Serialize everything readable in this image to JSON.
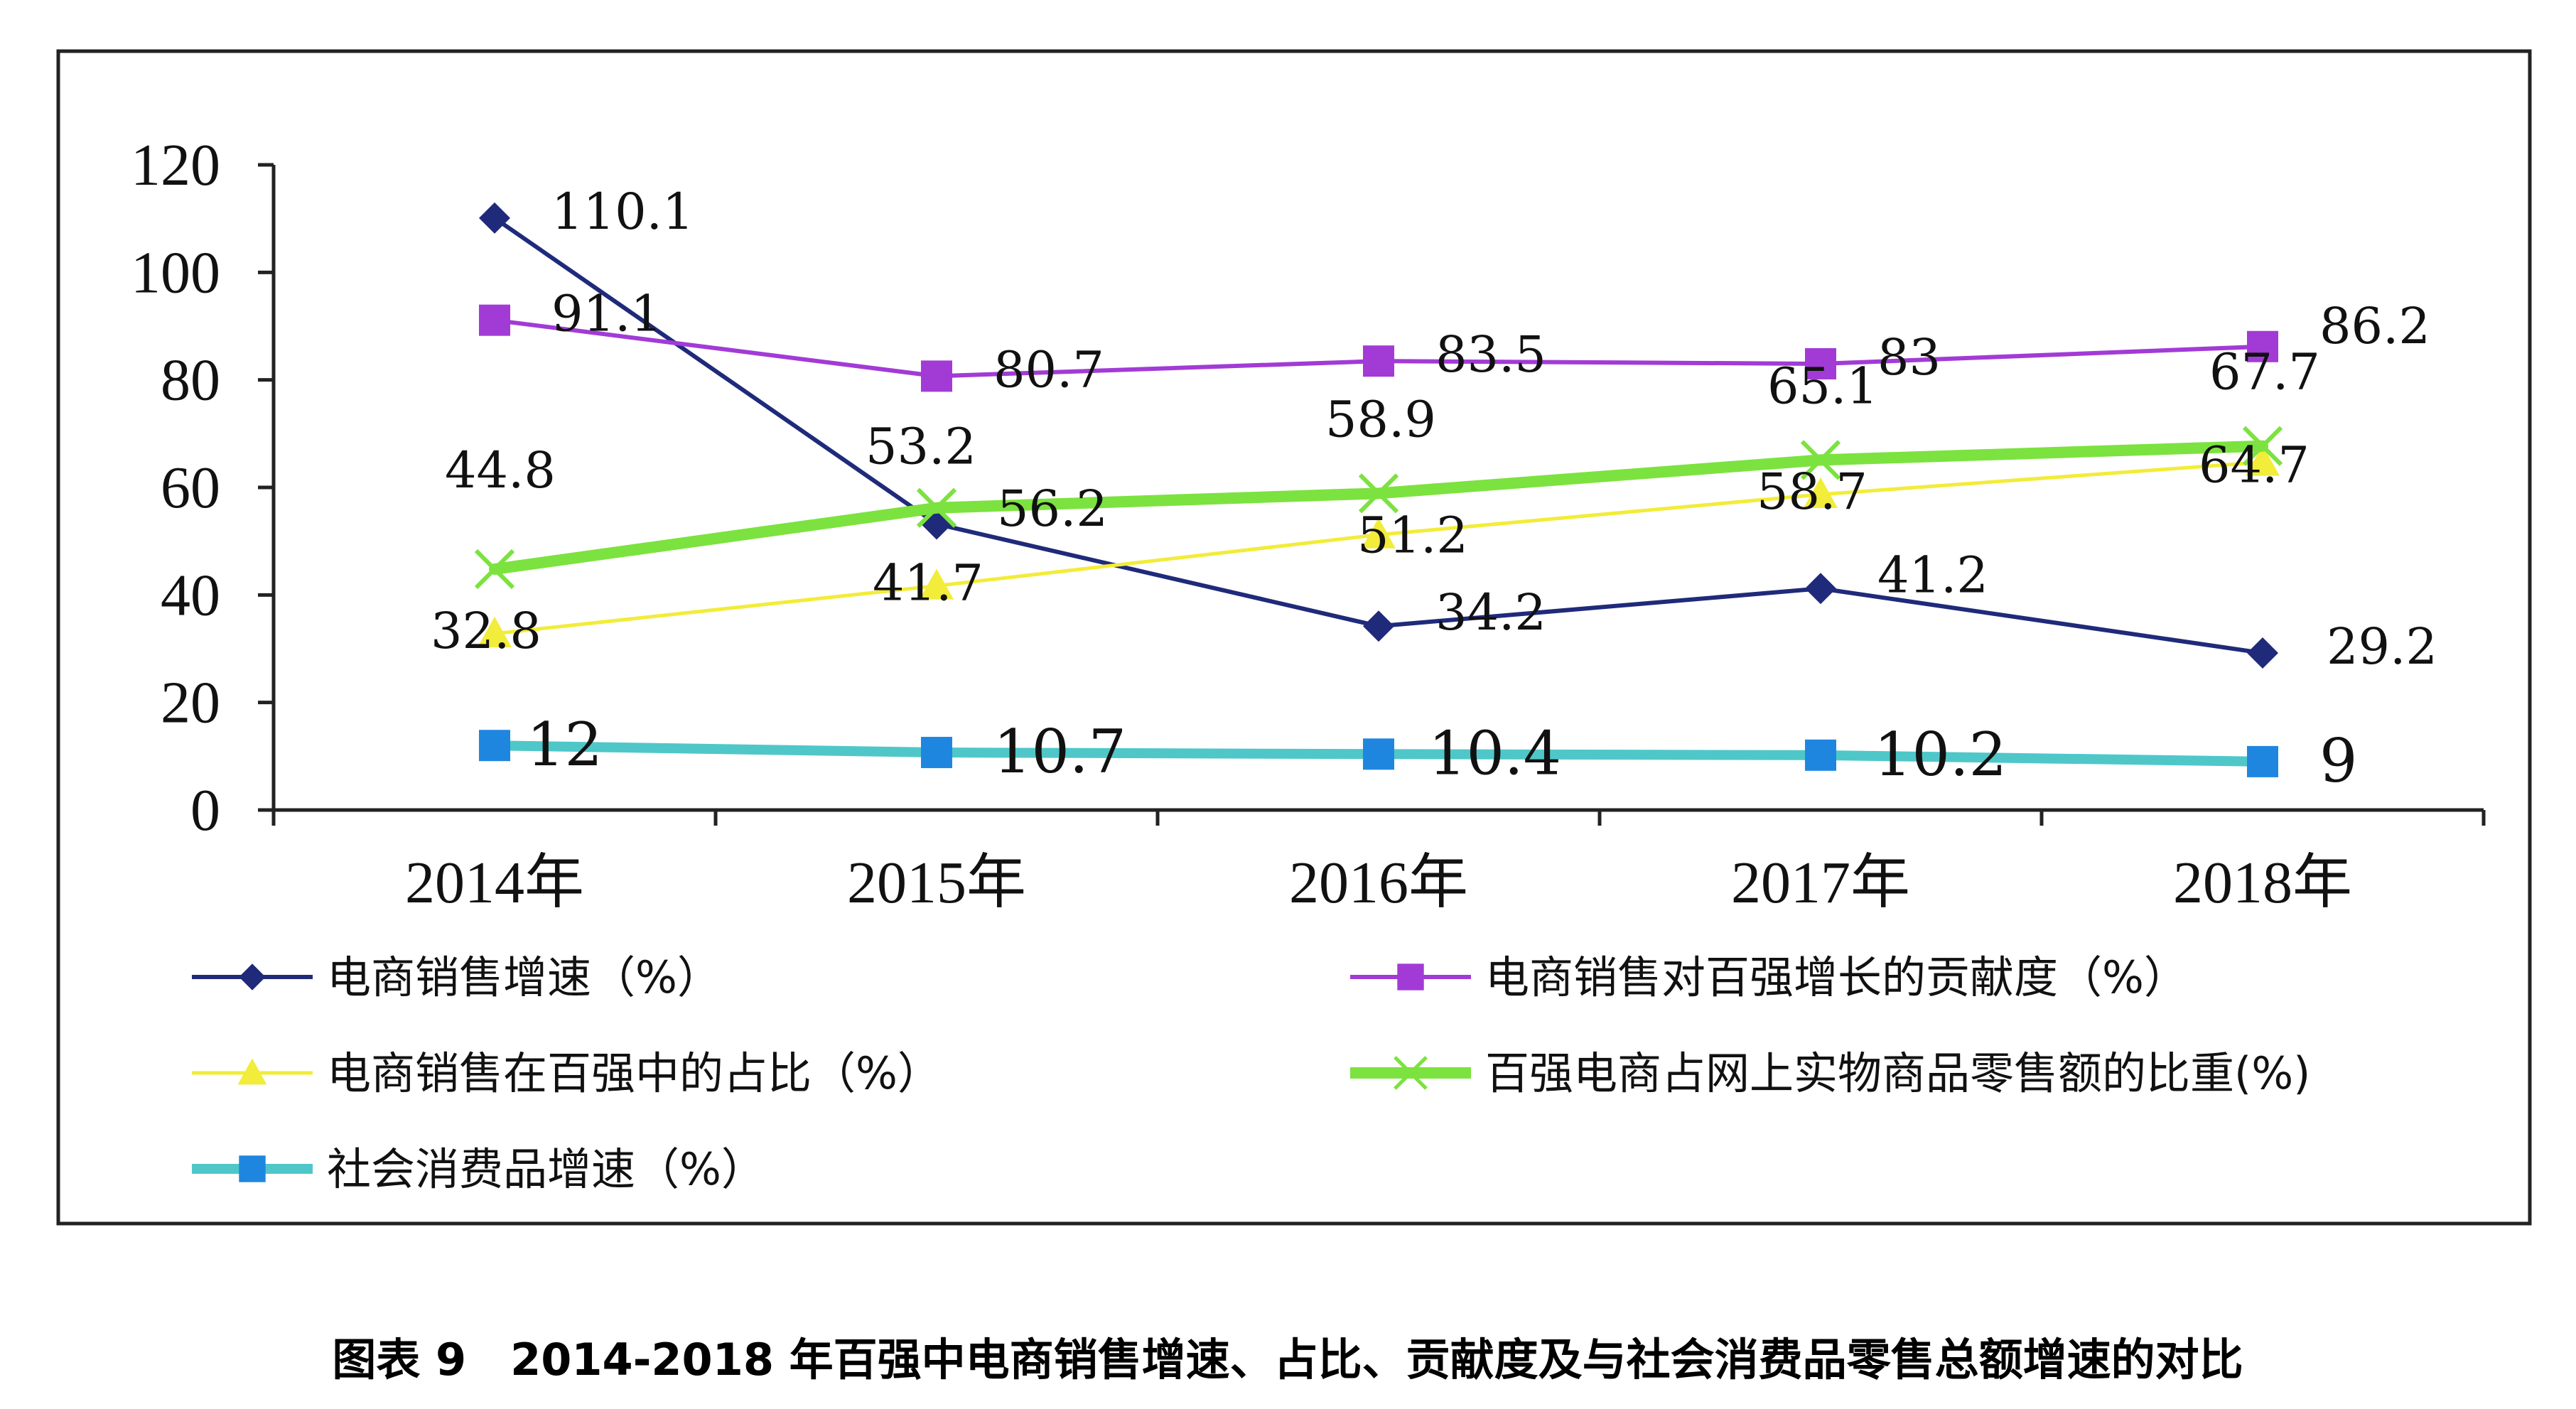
{
  "chart_data": {
    "type": "line",
    "categories": [
      "2014年",
      "2015年",
      "2016年",
      "2017年",
      "2018年"
    ],
    "ylim": [
      0,
      120
    ],
    "yticks": [
      "0",
      "20",
      "40",
      "60",
      "80",
      "100",
      "120"
    ],
    "caption": "图表 9　2014-2018 年百强中电商销售增速、占比、贡献度及与社会消费品零售总额增速的对比",
    "series": [
      {
        "name": "电商销售增速（%）",
        "values": [
          110.1,
          53.2,
          34.2,
          41.2,
          29.2
        ],
        "labels": [
          "110.1",
          "53.2",
          "34.2",
          "41.2",
          "29.2"
        ],
        "color": "#1f2a7a",
        "marker": "diamond"
      },
      {
        "name": "电商销售对百强增长的贡献度（%）",
        "values": [
          91.1,
          80.7,
          83.5,
          83,
          86.2
        ],
        "labels": [
          "91.1",
          "80.7",
          "83.5",
          "83",
          "86.2"
        ],
        "color": "#a23bd6",
        "marker": "square"
      },
      {
        "name": "电商销售在百强中的占比（%）",
        "values": [
          32.8,
          41.7,
          51.2,
          58.7,
          64.7
        ],
        "labels": [
          "32.8",
          "41.7",
          "51.2",
          "58.7",
          "64.7"
        ],
        "color": "#f2ec3a",
        "marker": "triangle"
      },
      {
        "name": "百强电商占网上实物商品零售额的比重(%)",
        "values": [
          44.8,
          56.2,
          58.9,
          65.1,
          67.7
        ],
        "labels": [
          "44.8",
          "56.2",
          "58.9",
          "65.1",
          "67.7"
        ],
        "color": "#7ce23f",
        "marker": "x"
      },
      {
        "name": "社会消费品增速（%）",
        "values": [
          12,
          10.7,
          10.4,
          10.2,
          9
        ],
        "labels": [
          "12",
          "10.7",
          "10.4",
          "10.2",
          "9"
        ],
        "color": "#4fc7c9",
        "marker": "square-blue"
      }
    ]
  }
}
